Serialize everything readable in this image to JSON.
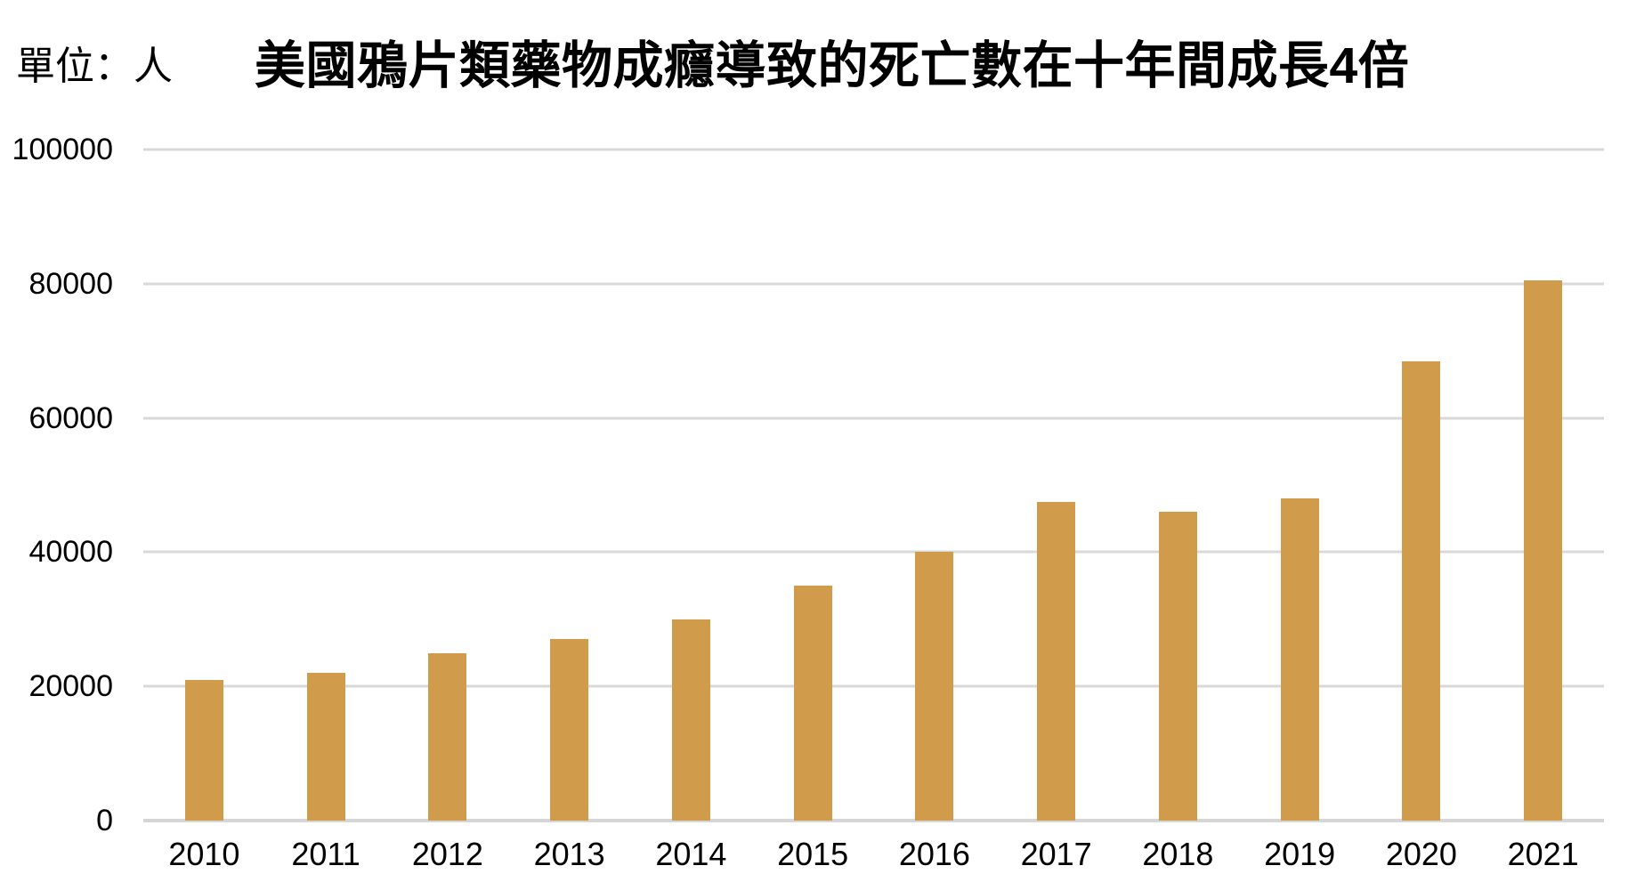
{
  "header": {
    "unit_label": "單位：人",
    "title": "美國鴉片類藥物成癮導致的死亡數在十年間成長4倍"
  },
  "chart_data": {
    "type": "bar",
    "title": "美國鴉片類藥物成癮導致的死亡數在十年間成長4倍",
    "unit_label": "單位：人",
    "unit": "人",
    "categories": [
      "2010",
      "2011",
      "2012",
      "2013",
      "2014",
      "2015",
      "2016",
      "2017",
      "2018",
      "2019",
      "2020",
      "2021"
    ],
    "values": [
      21000,
      22000,
      25000,
      27000,
      30000,
      35000,
      40000,
      47500,
      46000,
      48000,
      68500,
      80500
    ],
    "xlabel": "",
    "ylabel": "",
    "ylim": [
      0,
      100000
    ],
    "yticks": [
      0,
      20000,
      40000,
      60000,
      80000,
      100000
    ],
    "grid": "horizontal-only",
    "legend": "none",
    "bar_color": "#D19B4C",
    "gridline_color": "#D9D9D9",
    "baseline_color": "#D6D6D6",
    "text_color": "#000000",
    "background_color": "#FFFFFF"
  }
}
